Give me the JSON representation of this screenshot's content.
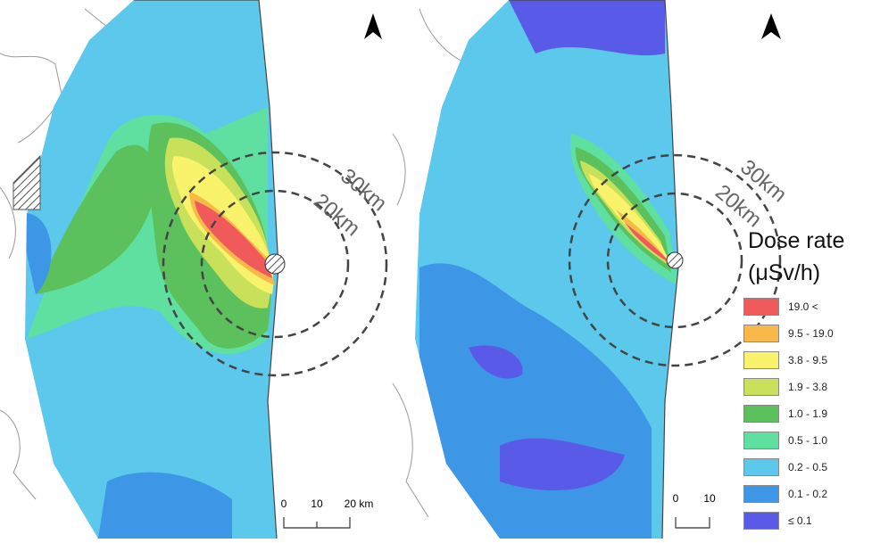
{
  "left_map": {
    "rings": [
      {
        "label": "30km"
      },
      {
        "label": "20km"
      }
    ],
    "scale_bar": {
      "ticks": [
        "0",
        "10",
        "20 km"
      ]
    }
  },
  "right_map": {
    "rings": [
      {
        "label": "30km"
      },
      {
        "label": "20km"
      }
    ],
    "scale_bar": {
      "ticks": [
        "0",
        "10"
      ]
    }
  },
  "legend": {
    "title_line1": "Dose rate",
    "title_line2": "(μSv/h)",
    "items": [
      {
        "label": "19.0 <",
        "color": "#f05a5a"
      },
      {
        "label": "9.5 - 19.0",
        "color": "#f8b84a"
      },
      {
        "label": "3.8 - 9.5",
        "color": "#f8f36a"
      },
      {
        "label": "1.9 - 3.8",
        "color": "#c8e05a"
      },
      {
        "label": "1.0 - 1.9",
        "color": "#5cc05c"
      },
      {
        "label": "0.5 - 1.0",
        "color": "#5fe0a0"
      },
      {
        "label": "0.2 - 0.5",
        "color": "#5bc8ec"
      },
      {
        "label": "0.1 - 0.2",
        "color": "#3e96e6"
      },
      {
        "label": "≤ 0.1",
        "color": "#5a5ae8"
      }
    ]
  }
}
